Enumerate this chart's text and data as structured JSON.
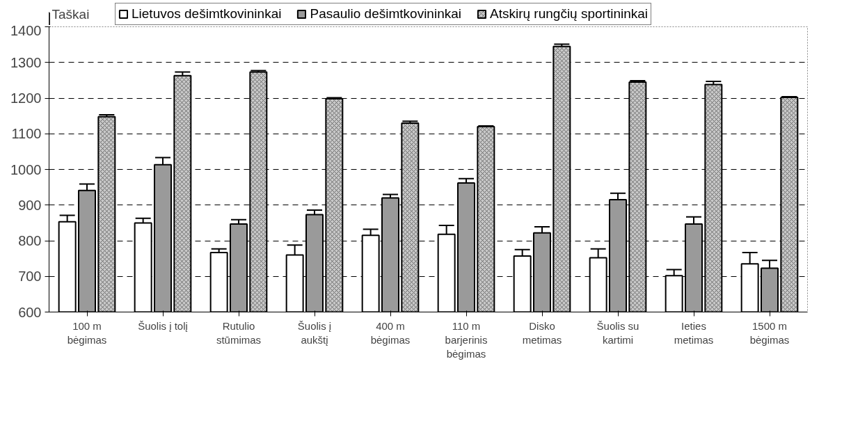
{
  "chart_data": {
    "type": "bar",
    "ylabel": "Taškai",
    "categories": [
      "100 m\nbėgimas",
      "Šuolis į tolį",
      "Rutulio\nstūmimas",
      "Šuolis į\naukštį",
      "400 m\nbėgimas",
      "110 m\nbarjerinis\nbėgimas",
      "Disko\nmetimas",
      "Šuolis su\nkartimi",
      "Ieties\nmetimas",
      "1500 m\nbėgimas"
    ],
    "series": [
      {
        "name": "Lietuvos dešimtkovininkai",
        "color": "#ffffff",
        "values": [
          853,
          850,
          767,
          760,
          815,
          818,
          757,
          752,
          702,
          735
        ],
        "errors": [
          18,
          13,
          10,
          28,
          17,
          25,
          18,
          25,
          17,
          32
        ]
      },
      {
        "name": "Pasaulio dešimtkovininkai",
        "color": "#9a9a9a",
        "values": [
          941,
          1013,
          847,
          873,
          920,
          962,
          822,
          915,
          847,
          723
        ],
        "errors": [
          18,
          20,
          12,
          13,
          10,
          12,
          17,
          18,
          20,
          22
        ]
      },
      {
        "name": "Atskirų rungčių sportininkai",
        "color": "#c8c8c8",
        "values": [
          1148,
          1263,
          1273,
          1198,
          1130,
          1120,
          1345,
          1245,
          1238,
          1202
        ],
        "errors": [
          5,
          10,
          4,
          3,
          5,
          2,
          6,
          4,
          9,
          2
        ]
      }
    ],
    "ylim": [
      600,
      1400
    ],
    "yticks": [
      600,
      700,
      800,
      900,
      1000,
      1100,
      1200,
      1300,
      1400
    ],
    "grid": "y",
    "legend": "top"
  }
}
